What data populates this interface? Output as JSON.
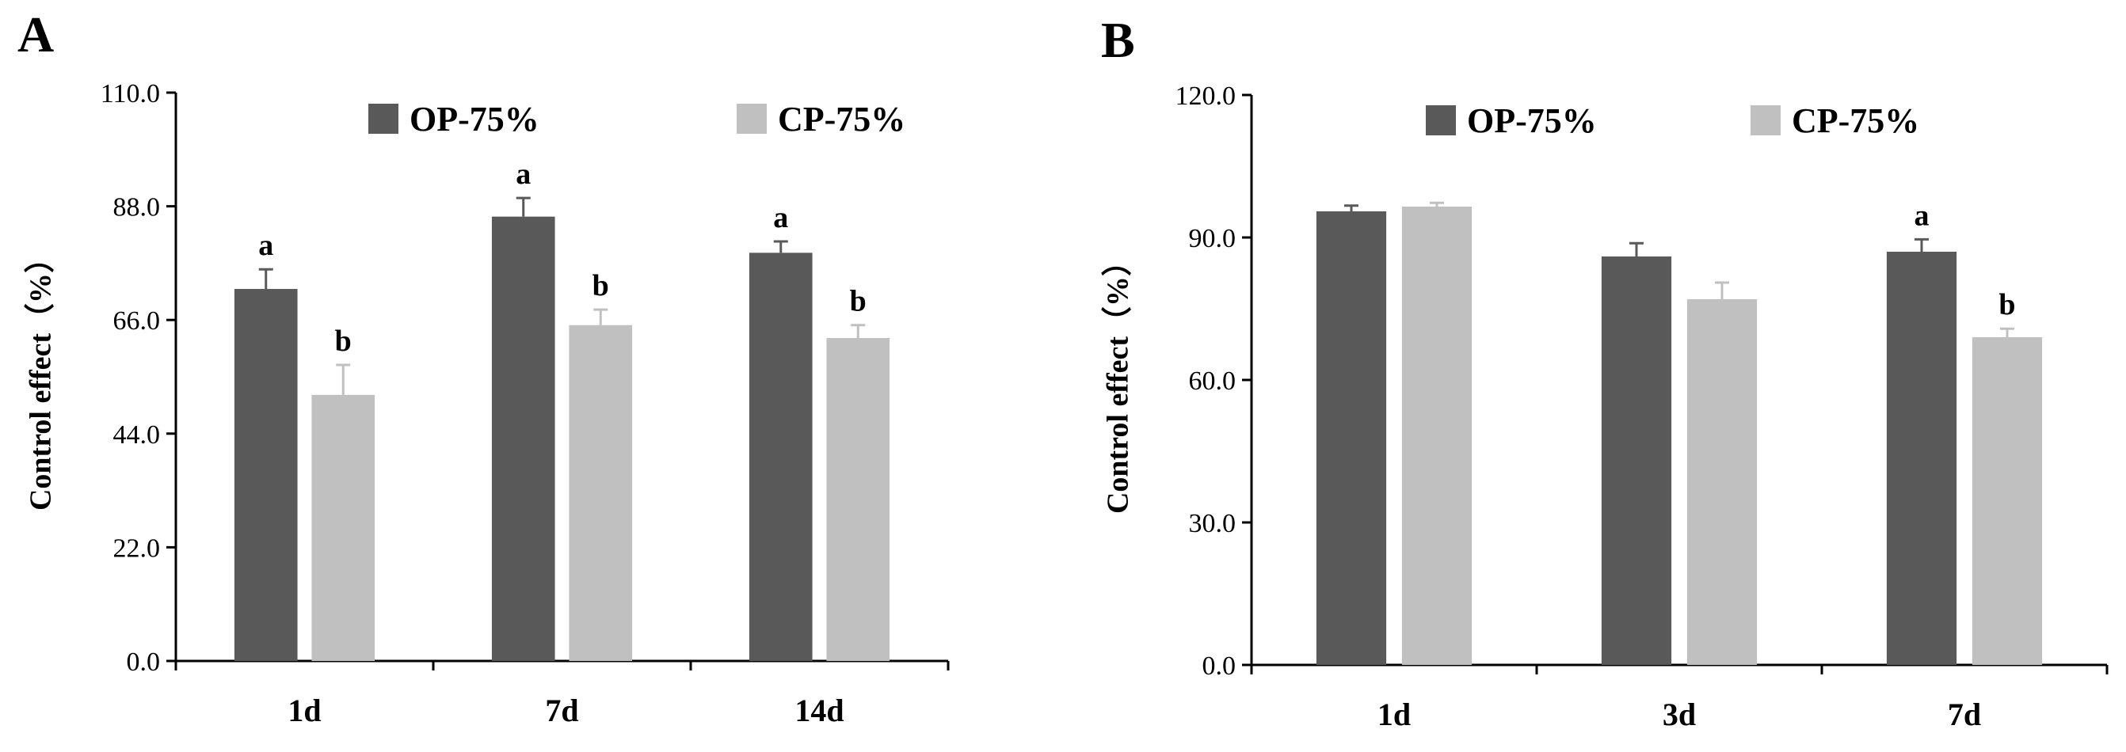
{
  "chart_data": [
    {
      "type": "bar",
      "panel": "A",
      "categories": [
        "1d",
        "7d",
        "14d"
      ],
      "series": [
        {
          "name": "OP-75%",
          "color": "#595959",
          "values": [
            72.0,
            86.0,
            79.0
          ],
          "errors": [
            3.8,
            3.6,
            2.2
          ],
          "labels": [
            "a",
            "a",
            "a"
          ]
        },
        {
          "name": "CP-75%",
          "color": "#c0c0c0",
          "values": [
            51.5,
            65.0,
            62.5
          ],
          "errors": [
            5.8,
            3.0,
            2.5
          ],
          "labels": [
            "b",
            "b",
            "b"
          ]
        }
      ],
      "ylabel": "Control effect（%）",
      "ylim": [
        0,
        110
      ],
      "yticks": [
        0,
        22,
        44,
        66,
        88,
        110
      ],
      "ytick_labels": [
        "0.0",
        "22.0",
        "44.0",
        "66.0",
        "88.0",
        "110.0"
      ],
      "legend": "top"
    },
    {
      "type": "bar",
      "panel": "B",
      "categories": [
        "1d",
        "3d",
        "7d"
      ],
      "series": [
        {
          "name": "OP-75%",
          "color": "#595959",
          "values": [
            95.5,
            86.0,
            87.0
          ],
          "errors": [
            1.2,
            2.8,
            2.6
          ],
          "labels": [
            "",
            "",
            "a"
          ]
        },
        {
          "name": "CP-75%",
          "color": "#c0c0c0",
          "values": [
            96.5,
            77.0,
            69.0
          ],
          "errors": [
            0.8,
            3.5,
            1.8
          ],
          "labels": [
            "",
            "",
            "b"
          ]
        }
      ],
      "ylabel": "Control effect（%）",
      "ylim": [
        0,
        120
      ],
      "yticks": [
        0,
        30,
        60,
        90,
        120
      ],
      "ytick_labels": [
        "0.0",
        "30.0",
        "60.0",
        "90.0",
        "120.0"
      ],
      "legend": "top"
    }
  ]
}
